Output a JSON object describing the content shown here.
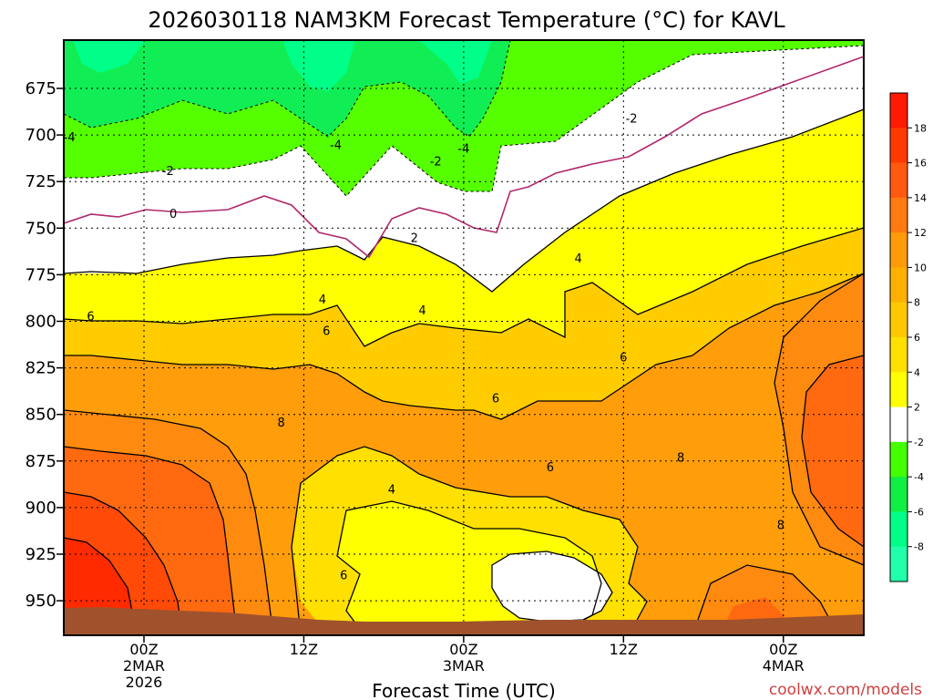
{
  "chart_data": {
    "type": "contour",
    "title": "2026030118 NAM3KM Forecast Temperature (°C) for KAVL",
    "xlabel": "Forecast Time (UTC)",
    "ylabel": "",
    "credit": "coolwx.com/models",
    "y_axis": {
      "reversed": true,
      "ticks": [
        "675",
        "700",
        "725",
        "750",
        "775",
        "800",
        "825",
        "850",
        "875",
        "900",
        "925",
        "950"
      ]
    },
    "x_axis": {
      "ticks": [
        {
          "hour": 6,
          "lines": [
            "00Z",
            "2MAR",
            "2026"
          ]
        },
        {
          "hour": 18,
          "lines": [
            "12Z"
          ]
        },
        {
          "hour": 30,
          "lines": [
            "00Z",
            "3MAR"
          ]
        },
        {
          "hour": 42,
          "lines": [
            "12Z"
          ]
        },
        {
          "hour": 54,
          "lines": [
            "00Z",
            "4MAR"
          ]
        }
      ]
    },
    "colorbar": {
      "labels": [
        "18",
        "16",
        "14",
        "12",
        "10",
        "8",
        "6",
        "4",
        "2",
        "-2",
        "-4",
        "-6",
        "-8"
      ],
      "colors": [
        "#ff1a00",
        "#ff3a00",
        "#ff5a10",
        "#ff7a10",
        "#ff9a08",
        "#ffb000",
        "#ffc800",
        "#ffe000",
        "#ffff00",
        "#ffffff",
        "#44ff00",
        "#11ee44",
        "#00ff88",
        "#22ffaa"
      ]
    },
    "contour_labels": [
      {
        "text": "-4",
        "hour": 0.4,
        "pres": 701
      },
      {
        "text": "-4",
        "hour": 20.4,
        "pres": 705
      },
      {
        "text": "-4",
        "hour": 30.0,
        "pres": 707
      },
      {
        "text": "-2",
        "hour": 7.8,
        "pres": 719
      },
      {
        "text": "-2",
        "hour": 27.9,
        "pres": 714
      },
      {
        "text": "-2",
        "hour": 42.6,
        "pres": 691
      },
      {
        "text": "0",
        "hour": 8.2,
        "pres": 742
      },
      {
        "text": "2",
        "hour": 26.3,
        "pres": 755
      },
      {
        "text": "4",
        "hour": 19.4,
        "pres": 788
      },
      {
        "text": "4",
        "hour": 26.9,
        "pres": 794
      },
      {
        "text": "4",
        "hour": 38.6,
        "pres": 766
      },
      {
        "text": "6",
        "hour": 2.0,
        "pres": 797
      },
      {
        "text": "6",
        "hour": 19.7,
        "pres": 805
      },
      {
        "text": "6",
        "hour": 32.4,
        "pres": 841
      },
      {
        "text": "6",
        "hour": 42.0,
        "pres": 819
      },
      {
        "text": "6",
        "hour": 36.5,
        "pres": 878
      },
      {
        "text": "6",
        "hour": 21.0,
        "pres": 936
      },
      {
        "text": "4",
        "hour": 24.6,
        "pres": 890
      },
      {
        "text": "8",
        "hour": 16.3,
        "pres": 854
      },
      {
        "text": "8",
        "hour": 46.3,
        "pres": 873
      },
      {
        "text": "8",
        "hour": 53.8,
        "pres": 909
      }
    ]
  },
  "colors": {
    "ground": "#a0522d",
    "freezing_line": "#b0286c"
  }
}
